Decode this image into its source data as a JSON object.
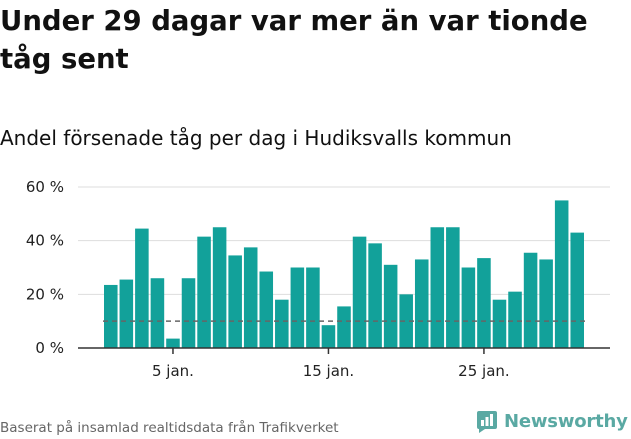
{
  "title": "Under 29 dagar var mer än var tionde tåg sent",
  "subtitle": "Andel försenade tåg per dag i Hudiksvalls kommun",
  "footer": "Baserat på insamlad realtidsdata från Trafikverket",
  "logo": {
    "text": "Newsworthy",
    "icon": "newsworthy-logo-icon",
    "color": "#5aa9a3"
  },
  "colors": {
    "bar": "#12a19a",
    "grid": "#dddddd",
    "axis": "#333333",
    "reference_line": "#666666"
  },
  "chart_data": {
    "type": "bar",
    "categories": [
      "1 jan.",
      "2 jan.",
      "3 jan.",
      "4 jan.",
      "5 jan.",
      "6 jan.",
      "7 jan.",
      "8 jan.",
      "9 jan.",
      "10 jan.",
      "11 jan.",
      "12 jan.",
      "13 jan.",
      "14 jan.",
      "15 jan.",
      "16 jan.",
      "17 jan.",
      "18 jan.",
      "19 jan.",
      "20 jan.",
      "21 jan.",
      "22 jan.",
      "23 jan.",
      "24 jan.",
      "25 jan.",
      "26 jan.",
      "27 jan.",
      "28 jan.",
      "29 jan.",
      "30 jan.",
      "31 jan."
    ],
    "values": [
      23.5,
      25.5,
      44.5,
      26,
      3.5,
      26,
      41.5,
      45,
      34.5,
      37.5,
      28.5,
      18,
      30,
      30,
      8.5,
      15.5,
      41.5,
      39,
      31,
      20,
      33,
      45,
      45,
      30,
      33.5,
      18,
      21,
      35.5,
      33,
      55,
      43
    ],
    "ylim": [
      0,
      60
    ],
    "yticks": [
      0,
      20,
      40,
      60
    ],
    "ytick_labels": [
      "0 %",
      "20 %",
      "40 %",
      "60 %"
    ],
    "xticks": [
      {
        "category": "5 jan.",
        "label": "5 jan."
      },
      {
        "category": "15 jan.",
        "label": "15 jan."
      },
      {
        "category": "25 jan.",
        "label": "25 jan."
      }
    ],
    "reference_line": 10,
    "grid": true,
    "xlabel": "",
    "ylabel": ""
  }
}
